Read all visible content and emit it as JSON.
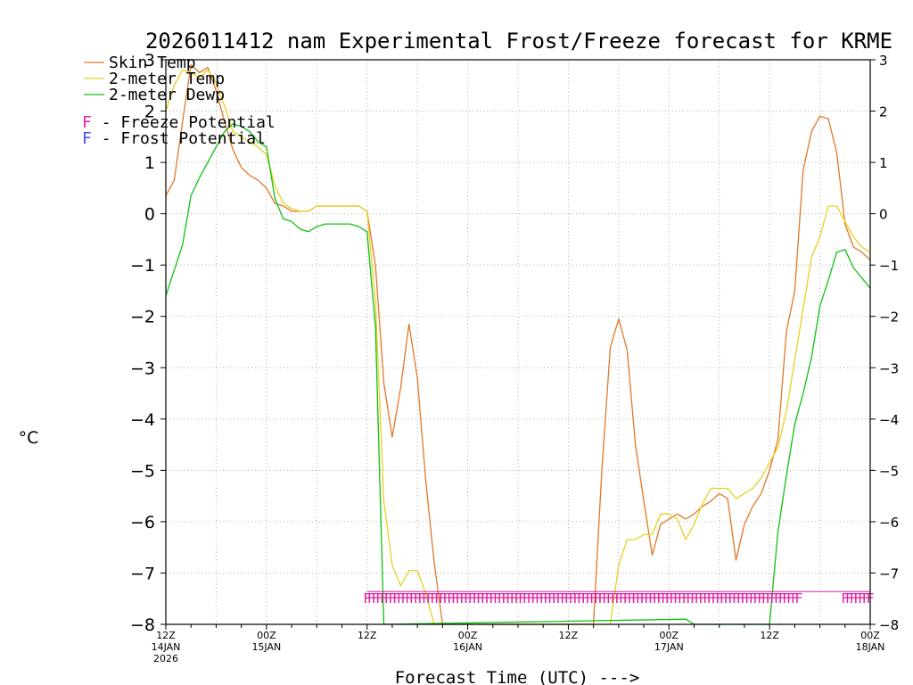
{
  "chart_data": {
    "type": "line",
    "title": "2026011412 nam Experimental Frost/Freeze forecast for KRME",
    "xlabel": "Forecast Time (UTC) --->",
    "ylabel": "°C",
    "ylim": [
      -8,
      3
    ],
    "xlim": [
      0,
      84
    ],
    "y_ticks": [
      "3",
      "2",
      "1",
      "0",
      "−1",
      "−2",
      "−3",
      "−4",
      "−5",
      "−6",
      "−7",
      "−8"
    ],
    "x_ticks": [
      {
        "hour": 0,
        "lines": [
          "12Z",
          "14JAN",
          "2026"
        ]
      },
      {
        "hour": 12,
        "lines": [
          "00Z",
          "15JAN"
        ]
      },
      {
        "hour": 24,
        "lines": [
          "12Z"
        ]
      },
      {
        "hour": 36,
        "lines": [
          "00Z",
          "16JAN"
        ]
      },
      {
        "hour": 48,
        "lines": [
          "12Z"
        ]
      },
      {
        "hour": 60,
        "lines": [
          "00Z",
          "17JAN"
        ]
      },
      {
        "hour": 72,
        "lines": [
          "12Z"
        ]
      },
      {
        "hour": 84,
        "lines": [
          "00Z",
          "18JAN"
        ]
      }
    ],
    "legend": [
      {
        "label": "Skin Temp",
        "color": "#e07828"
      },
      {
        "label": "2-meter Temp",
        "color": "#e8d020"
      },
      {
        "label": "2-meter Dewp",
        "color": "#10c010"
      }
    ],
    "potential_legend": [
      {
        "marker": "F",
        "label": " - Freeze Potential",
        "marker_color": "#e020a0"
      },
      {
        "marker": "F",
        "label": " - Frost Potential",
        "marker_color": "#4050f0"
      }
    ],
    "series": [
      {
        "name": "Skin Temp",
        "color": "#e07828",
        "points": [
          [
            0,
            0.35
          ],
          [
            1,
            0.65
          ],
          [
            2,
            1.8
          ],
          [
            3,
            2.9
          ],
          [
            4,
            2.75
          ],
          [
            5,
            2.85
          ],
          [
            6,
            2.4
          ],
          [
            7,
            1.8
          ],
          [
            8,
            1.25
          ],
          [
            9,
            0.9
          ],
          [
            10,
            0.75
          ],
          [
            11,
            0.65
          ],
          [
            12,
            0.5
          ],
          [
            13,
            0.2
          ],
          [
            14,
            0.15
          ],
          [
            15,
            0.05
          ],
          [
            16,
            0.05
          ],
          [
            17,
            0.05
          ],
          [
            18,
            0.15
          ],
          [
            19,
            0.15
          ],
          [
            20,
            0.15
          ],
          [
            21,
            0.15
          ],
          [
            22,
            0.15
          ],
          [
            23,
            0.15
          ],
          [
            24,
            0.05
          ],
          [
            25,
            -1.0
          ],
          [
            26,
            -3.3
          ],
          [
            27,
            -4.35
          ],
          [
            28,
            -3.4
          ],
          [
            29,
            -2.15
          ],
          [
            30,
            -3.2
          ],
          [
            31,
            -5.2
          ],
          [
            32,
            -6.8
          ],
          [
            33,
            -8.0
          ],
          [
            51,
            -8.0
          ],
          [
            52,
            -5.0
          ],
          [
            53,
            -2.6
          ],
          [
            54,
            -2.05
          ],
          [
            55,
            -2.65
          ],
          [
            56,
            -4.5
          ],
          [
            57,
            -5.6
          ],
          [
            58,
            -6.65
          ],
          [
            59,
            -6.05
          ],
          [
            60,
            -5.95
          ],
          [
            61,
            -5.85
          ],
          [
            62,
            -5.95
          ],
          [
            63,
            -5.85
          ],
          [
            64,
            -5.7
          ],
          [
            65,
            -5.6
          ],
          [
            66,
            -5.45
          ],
          [
            67,
            -5.55
          ],
          [
            68,
            -6.75
          ],
          [
            69,
            -6.05
          ],
          [
            70,
            -5.7
          ],
          [
            71,
            -5.45
          ],
          [
            72,
            -5.0
          ],
          [
            73,
            -4.4
          ],
          [
            74,
            -2.3
          ],
          [
            75,
            -1.5
          ],
          [
            76,
            0.85
          ],
          [
            77,
            1.6
          ],
          [
            78,
            1.9
          ],
          [
            79,
            1.85
          ],
          [
            80,
            1.2
          ],
          [
            81,
            -0.2
          ],
          [
            82,
            -0.65
          ],
          [
            83,
            -0.75
          ],
          [
            84,
            -0.9
          ]
        ]
      },
      {
        "name": "2-meter Temp",
        "color": "#e8d020",
        "points": [
          [
            0,
            2.0
          ],
          [
            1,
            2.5
          ],
          [
            2,
            2.8
          ],
          [
            3,
            2.75
          ],
          [
            4,
            2.65
          ],
          [
            5,
            2.8
          ],
          [
            6,
            2.55
          ],
          [
            7,
            2.1
          ],
          [
            8,
            1.6
          ],
          [
            9,
            1.5
          ],
          [
            10,
            1.4
          ],
          [
            11,
            1.3
          ],
          [
            12,
            1.15
          ],
          [
            13,
            0.55
          ],
          [
            14,
            0.2
          ],
          [
            15,
            0.1
          ],
          [
            16,
            0.05
          ],
          [
            17,
            0.05
          ],
          [
            18,
            0.15
          ],
          [
            19,
            0.15
          ],
          [
            20,
            0.15
          ],
          [
            21,
            0.15
          ],
          [
            22,
            0.15
          ],
          [
            23,
            0.15
          ],
          [
            24,
            0.05
          ],
          [
            25,
            -1.7
          ],
          [
            26,
            -5.6
          ],
          [
            27,
            -6.85
          ],
          [
            28,
            -7.25
          ],
          [
            29,
            -6.95
          ],
          [
            30,
            -6.95
          ],
          [
            31,
            -7.4
          ],
          [
            32,
            -8.0
          ],
          [
            53,
            -8.0
          ],
          [
            54,
            -6.85
          ],
          [
            55,
            -6.35
          ],
          [
            56,
            -6.35
          ],
          [
            57,
            -6.25
          ],
          [
            58,
            -6.25
          ],
          [
            59,
            -5.85
          ],
          [
            60,
            -5.85
          ],
          [
            61,
            -5.95
          ],
          [
            62,
            -6.35
          ],
          [
            63,
            -6.05
          ],
          [
            64,
            -5.65
          ],
          [
            65,
            -5.35
          ],
          [
            66,
            -5.35
          ],
          [
            67,
            -5.35
          ],
          [
            68,
            -5.55
          ],
          [
            69,
            -5.45
          ],
          [
            70,
            -5.35
          ],
          [
            71,
            -5.15
          ],
          [
            72,
            -4.85
          ],
          [
            73,
            -4.55
          ],
          [
            74,
            -3.85
          ],
          [
            75,
            -2.85
          ],
          [
            76,
            -1.85
          ],
          [
            77,
            -0.85
          ],
          [
            78,
            -0.45
          ],
          [
            79,
            0.15
          ],
          [
            80,
            0.15
          ],
          [
            81,
            -0.15
          ],
          [
            82,
            -0.45
          ],
          [
            83,
            -0.65
          ],
          [
            84,
            -0.75
          ]
        ]
      },
      {
        "name": "2-meter Dewp",
        "color": "#10c010",
        "points": [
          [
            0,
            -1.6
          ],
          [
            1,
            -1.1
          ],
          [
            2,
            -0.6
          ],
          [
            3,
            0.35
          ],
          [
            4,
            0.7
          ],
          [
            5,
            1.0
          ],
          [
            6,
            1.3
          ],
          [
            7,
            1.6
          ],
          [
            8,
            1.75
          ],
          [
            9,
            1.7
          ],
          [
            10,
            1.6
          ],
          [
            11,
            1.4
          ],
          [
            12,
            1.3
          ],
          [
            13,
            0.3
          ],
          [
            14,
            -0.1
          ],
          [
            15,
            -0.15
          ],
          [
            16,
            -0.3
          ],
          [
            17,
            -0.35
          ],
          [
            18,
            -0.25
          ],
          [
            19,
            -0.2
          ],
          [
            20,
            -0.2
          ],
          [
            21,
            -0.2
          ],
          [
            22,
            -0.2
          ],
          [
            23,
            -0.25
          ],
          [
            24,
            -0.35
          ],
          [
            25,
            -2.2
          ],
          [
            26,
            -8.0
          ],
          [
            62,
            -7.9
          ],
          [
            63,
            -8.0
          ],
          [
            72,
            -8.0
          ],
          [
            73,
            -6.2
          ],
          [
            74,
            -5.1
          ],
          [
            75,
            -4.1
          ],
          [
            76,
            -3.5
          ],
          [
            77,
            -2.8
          ],
          [
            78,
            -1.8
          ],
          [
            79,
            -1.3
          ],
          [
            80,
            -0.75
          ],
          [
            81,
            -0.7
          ],
          [
            82,
            -1.05
          ],
          [
            83,
            -1.25
          ],
          [
            84,
            -1.45
          ]
        ]
      }
    ],
    "freeze_markers": {
      "symbol": "F",
      "color": "#e020a0",
      "y": -7.5,
      "hours": [
        24,
        24.5,
        25,
        25.5,
        26,
        26.5,
        27,
        27.5,
        28,
        28.5,
        29,
        29.5,
        30,
        30.5,
        31,
        31.5,
        32,
        32.5,
        33,
        33.5,
        34,
        34.5,
        35,
        35.5,
        36,
        36.5,
        37,
        37.5,
        38,
        38.5,
        39,
        39.5,
        40,
        40.5,
        41,
        41.5,
        42,
        42.5,
        43,
        43.5,
        44,
        44.5,
        45,
        45.5,
        46,
        46.5,
        47,
        47.5,
        48,
        48.5,
        49,
        49.5,
        50,
        50.5,
        51,
        51.5,
        52,
        52.5,
        53,
        53.5,
        54,
        54.5,
        55,
        55.5,
        56,
        56.5,
        57,
        57.5,
        58,
        58.5,
        59,
        59.5,
        60,
        60.5,
        61,
        61.5,
        62,
        62.5,
        63,
        63.5,
        64,
        64.5,
        65,
        65.5,
        66,
        66.5,
        67,
        67.5,
        68,
        68.5,
        69,
        69.5,
        70,
        70.5,
        71,
        71.5,
        72,
        72.5,
        73,
        73.5,
        74,
        74.5,
        75,
        75.5,
        81,
        81.5,
        82,
        82.5,
        83,
        83.5,
        84
      ]
    }
  }
}
